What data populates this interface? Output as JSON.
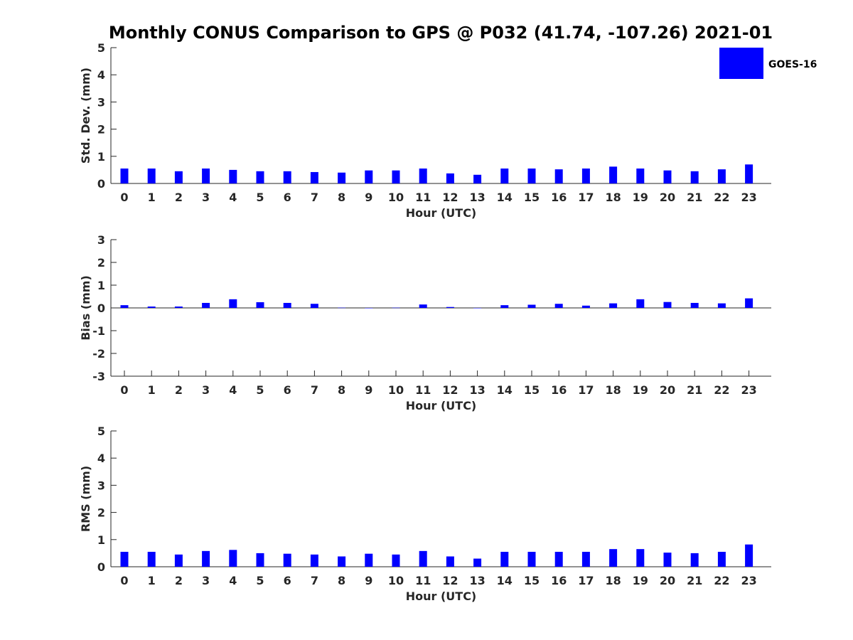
{
  "chart_data": {
    "title": "Monthly CONUS Comparison to GPS @ P032 (41.74, -107.26) 2021-01",
    "legend": {
      "placement": "top-right",
      "entries": [
        {
          "name": "GOES-16",
          "color": "#0000ff"
        }
      ]
    },
    "colors": {
      "bar": "#0000ff",
      "axis": "#262626"
    },
    "subplots": [
      {
        "type": "bar",
        "xlabel": "Hour (UTC)",
        "ylabel": "Std. Dev. (mm)",
        "ylim": [
          0,
          5
        ],
        "yticks": [
          "0",
          "1",
          "2",
          "3",
          "4",
          "5"
        ],
        "categories": [
          "0",
          "1",
          "2",
          "3",
          "4",
          "5",
          "6",
          "7",
          "8",
          "9",
          "10",
          "11",
          "12",
          "13",
          "14",
          "15",
          "16",
          "17",
          "18",
          "19",
          "20",
          "21",
          "22",
          "23"
        ],
        "series": [
          {
            "name": "GOES-16",
            "values": [
              0.55,
              0.55,
              0.45,
              0.55,
              0.5,
              0.45,
              0.45,
              0.42,
              0.4,
              0.48,
              0.48,
              0.55,
              0.37,
              0.32,
              0.55,
              0.55,
              0.52,
              0.55,
              0.62,
              0.55,
              0.48,
              0.45,
              0.52,
              0.7
            ]
          }
        ]
      },
      {
        "type": "bar",
        "xlabel": "Hour (UTC)",
        "ylabel": "Bias (mm)",
        "ylim": [
          -3,
          3
        ],
        "yticks": [
          "-3",
          "-2",
          "-1",
          "0",
          "1",
          "2",
          "3"
        ],
        "categories": [
          "0",
          "1",
          "2",
          "3",
          "4",
          "5",
          "6",
          "7",
          "8",
          "9",
          "10",
          "11",
          "12",
          "13",
          "14",
          "15",
          "16",
          "17",
          "18",
          "19",
          "20",
          "21",
          "22",
          "23"
        ],
        "series": [
          {
            "name": "GOES-16",
            "values": [
              0.12,
              0.06,
              0.06,
              0.22,
              0.38,
              0.25,
              0.22,
              0.18,
              0.01,
              -0.01,
              0.01,
              0.15,
              0.04,
              -0.01,
              0.12,
              0.14,
              0.18,
              0.1,
              0.2,
              0.38,
              0.26,
              0.22,
              0.2,
              0.42
            ]
          }
        ]
      },
      {
        "type": "bar",
        "xlabel": "Hour (UTC)",
        "ylabel": "RMS (mm)",
        "ylim": [
          0,
          5
        ],
        "yticks": [
          "0",
          "1",
          "2",
          "3",
          "4",
          "5"
        ],
        "categories": [
          "0",
          "1",
          "2",
          "3",
          "4",
          "5",
          "6",
          "7",
          "8",
          "9",
          "10",
          "11",
          "12",
          "13",
          "14",
          "15",
          "16",
          "17",
          "18",
          "19",
          "20",
          "21",
          "22",
          "23"
        ],
        "series": [
          {
            "name": "GOES-16",
            "values": [
              0.55,
              0.55,
              0.45,
              0.58,
              0.62,
              0.5,
              0.48,
              0.45,
              0.38,
              0.48,
              0.45,
              0.58,
              0.38,
              0.3,
              0.55,
              0.55,
              0.55,
              0.55,
              0.65,
              0.65,
              0.52,
              0.5,
              0.55,
              0.82
            ]
          }
        ]
      }
    ]
  }
}
